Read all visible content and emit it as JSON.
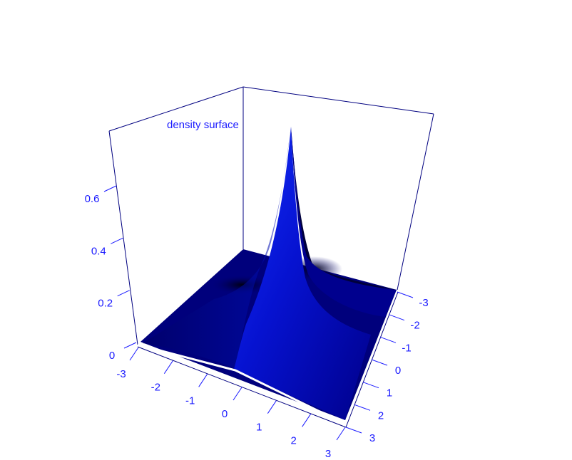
{
  "chart_data": {
    "type": "surface",
    "title": "density surface",
    "xlabel": "",
    "ylabel": "",
    "zlabel": "",
    "x_ticks": [
      "-3",
      "-2",
      "-1",
      "0",
      "1",
      "2",
      "3"
    ],
    "y_ticks": [
      "-3",
      "-2",
      "-1",
      "0",
      "1",
      "2",
      "3"
    ],
    "z_ticks": [
      "0",
      "0.2",
      "0.4",
      "0.6"
    ],
    "xlim": [
      -3,
      3
    ],
    "ylim": [
      -3,
      3
    ],
    "zlim": [
      0,
      0.75
    ],
    "peak": {
      "x": 0,
      "y": 0,
      "z": 0.72
    },
    "surface_color": "#0000cc",
    "axis_color": "#1a1aff",
    "box_color": "#000080"
  }
}
